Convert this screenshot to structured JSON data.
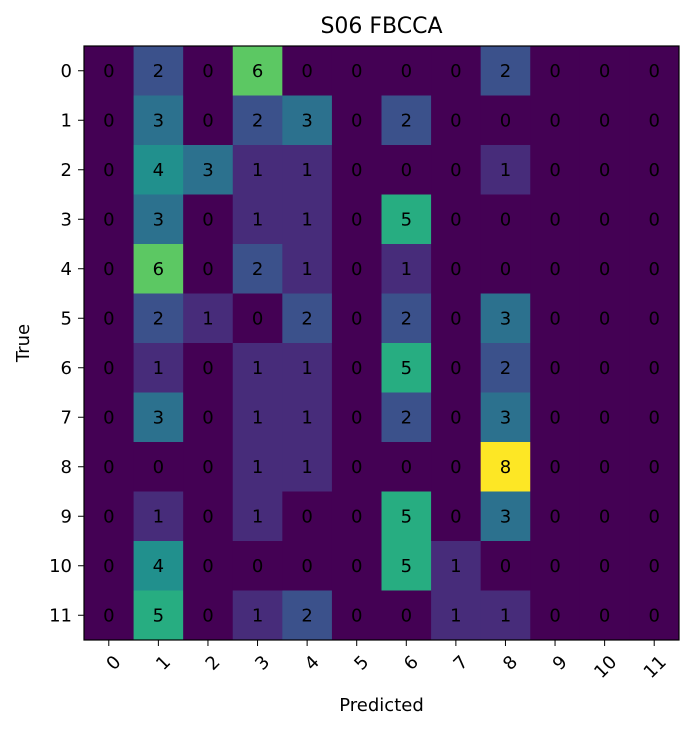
{
  "chart_data": {
    "type": "heatmap",
    "title": "S06 FBCCA",
    "xlabel": "Predicted",
    "ylabel": "True",
    "x_categories": [
      "0",
      "1",
      "2",
      "3",
      "4",
      "5",
      "6",
      "7",
      "8",
      "9",
      "10",
      "11"
    ],
    "y_categories": [
      "0",
      "1",
      "2",
      "3",
      "4",
      "5",
      "6",
      "7",
      "8",
      "9",
      "10",
      "11"
    ],
    "colormap": "viridis",
    "value_range": [
      0,
      8
    ],
    "values": [
      [
        0,
        2,
        0,
        6,
        0,
        0,
        0,
        0,
        2,
        0,
        0,
        0
      ],
      [
        0,
        3,
        0,
        2,
        3,
        0,
        2,
        0,
        0,
        0,
        0,
        0
      ],
      [
        0,
        4,
        3,
        1,
        1,
        0,
        0,
        0,
        1,
        0,
        0,
        0
      ],
      [
        0,
        3,
        0,
        1,
        1,
        0,
        5,
        0,
        0,
        0,
        0,
        0
      ],
      [
        0,
        6,
        0,
        2,
        1,
        0,
        1,
        0,
        0,
        0,
        0,
        0
      ],
      [
        0,
        2,
        1,
        0,
        2,
        0,
        2,
        0,
        3,
        0,
        0,
        0
      ],
      [
        0,
        1,
        0,
        1,
        1,
        0,
        5,
        0,
        2,
        0,
        0,
        0
      ],
      [
        0,
        3,
        0,
        1,
        1,
        0,
        2,
        0,
        3,
        0,
        0,
        0
      ],
      [
        0,
        0,
        0,
        1,
        1,
        0,
        0,
        0,
        8,
        0,
        0,
        0
      ],
      [
        0,
        1,
        0,
        1,
        0,
        0,
        5,
        0,
        3,
        0,
        0,
        0
      ],
      [
        0,
        4,
        0,
        0,
        0,
        0,
        5,
        1,
        0,
        0,
        0,
        0
      ],
      [
        0,
        5,
        0,
        1,
        2,
        0,
        0,
        1,
        1,
        0,
        0,
        0
      ]
    ]
  }
}
